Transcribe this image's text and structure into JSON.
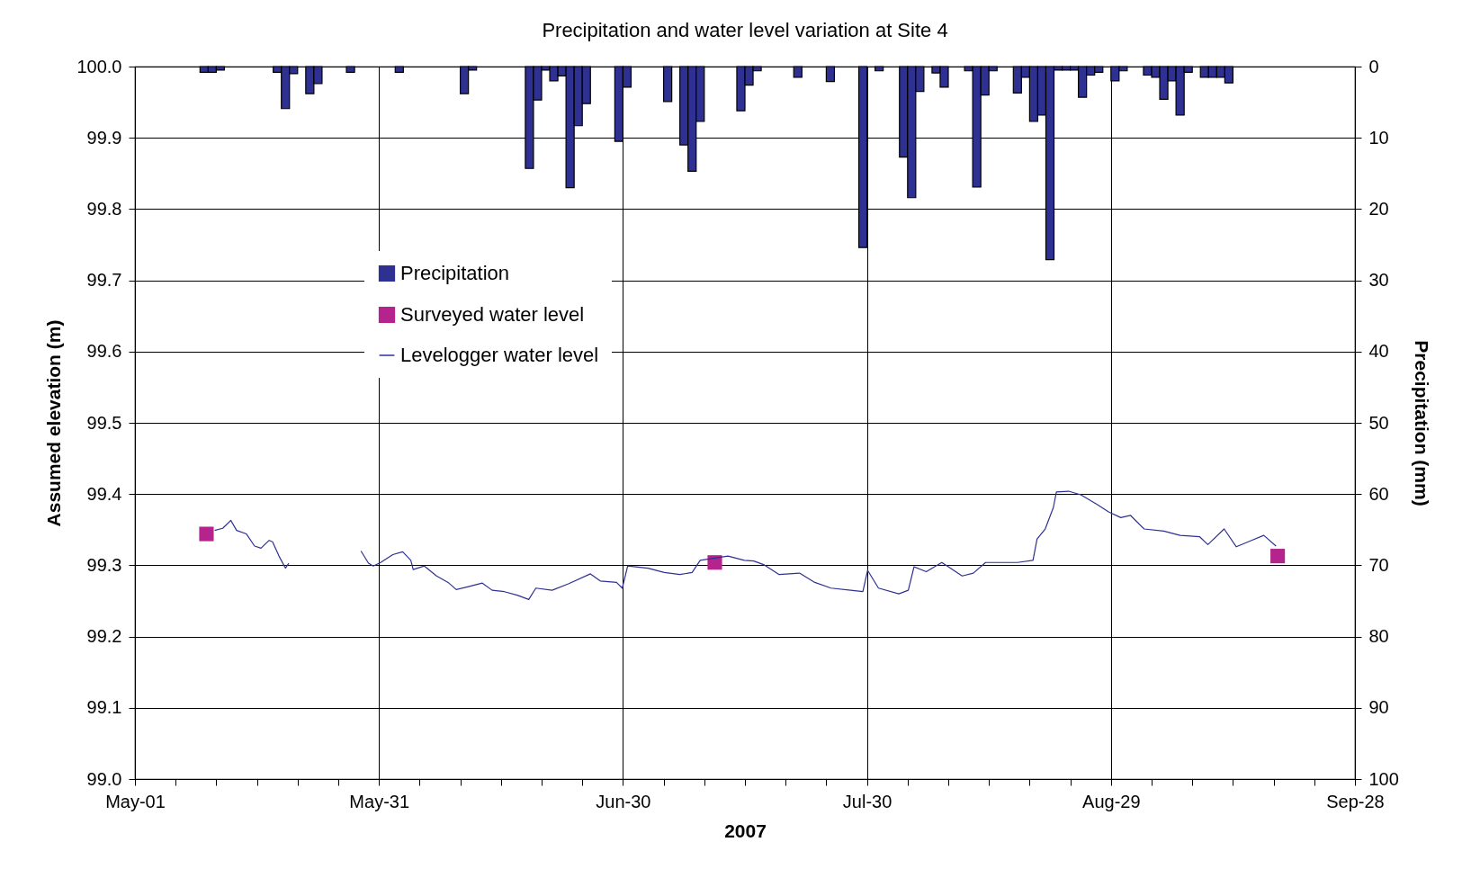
{
  "chart_data": {
    "type": "line",
    "title": "Precipitation and water level variation at Site 4",
    "xlabel": "2007",
    "ylabel": "Assumed elevation (m)",
    "y2label": "Precipitation (mm)",
    "xlim": [
      "2007-05-01",
      "2007-09-28"
    ],
    "xticks": [
      {
        "value": "2007-05-01",
        "label": "May-01"
      },
      {
        "value": "2007-05-06",
        "label": null
      },
      {
        "value": "2007-05-11",
        "label": null
      },
      {
        "value": "2007-05-16",
        "label": null
      },
      {
        "value": "2007-05-21",
        "label": null
      },
      {
        "value": "2007-05-26",
        "label": null
      },
      {
        "value": "2007-05-31",
        "label": "May-31"
      },
      {
        "value": "2007-06-05",
        "label": null
      },
      {
        "value": "2007-06-10",
        "label": null
      },
      {
        "value": "2007-06-15",
        "label": null
      },
      {
        "value": "2007-06-20",
        "label": null
      },
      {
        "value": "2007-06-25",
        "label": null
      },
      {
        "value": "2007-06-30",
        "label": "Jun-30"
      },
      {
        "value": "2007-07-05",
        "label": null
      },
      {
        "value": "2007-07-10",
        "label": null
      },
      {
        "value": "2007-07-15",
        "label": null
      },
      {
        "value": "2007-07-20",
        "label": null
      },
      {
        "value": "2007-07-25",
        "label": null
      },
      {
        "value": "2007-07-30",
        "label": "Jul-30"
      },
      {
        "value": "2007-08-04",
        "label": null
      },
      {
        "value": "2007-08-09",
        "label": null
      },
      {
        "value": "2007-08-14",
        "label": null
      },
      {
        "value": "2007-08-19",
        "label": null
      },
      {
        "value": "2007-08-24",
        "label": null
      },
      {
        "value": "2007-08-29",
        "label": "Aug-29"
      },
      {
        "value": "2007-09-03",
        "label": null
      },
      {
        "value": "2007-09-08",
        "label": null
      },
      {
        "value": "2007-09-13",
        "label": null
      },
      {
        "value": "2007-09-18",
        "label": null
      },
      {
        "value": "2007-09-23",
        "label": null
      },
      {
        "value": "2007-09-28",
        "label": "Sep-28"
      }
    ],
    "ylim": [
      99.0,
      100.0
    ],
    "yticks": [
      {
        "value": 99,
        "label": "99.0"
      },
      99.1,
      99.2,
      99.3,
      99.4,
      99.5,
      99.6,
      99.7,
      99.8,
      99.9,
      {
        "value": 100,
        "label": "100.0"
      }
    ],
    "y2lim": [
      100,
      0
    ],
    "y2ticks": [
      0,
      10,
      20,
      30,
      40,
      50,
      60,
      70,
      80,
      90,
      100
    ],
    "grid": true,
    "legend": "top left",
    "series": [
      {
        "name": "Precipitation",
        "type": "bar",
        "axis": "y2",
        "color": "#2e3192",
        "x": [
          "2007-05-09",
          "2007-05-10",
          "2007-05-11",
          "2007-05-18",
          "2007-05-19",
          "2007-05-20",
          "2007-05-22",
          "2007-05-23",
          "2007-05-27",
          "2007-06-02",
          "2007-06-10",
          "2007-06-11",
          "2007-06-18",
          "2007-06-19",
          "2007-06-20",
          "2007-06-21",
          "2007-06-22",
          "2007-06-23",
          "2007-06-24",
          "2007-06-25",
          "2007-06-29",
          "2007-06-30",
          "2007-07-05",
          "2007-07-07",
          "2007-07-08",
          "2007-07-09",
          "2007-07-14",
          "2007-07-15",
          "2007-07-16",
          "2007-07-21",
          "2007-07-25",
          "2007-07-29",
          "2007-07-31",
          "2007-08-03",
          "2007-08-04",
          "2007-08-05",
          "2007-08-07",
          "2007-08-08",
          "2007-08-11",
          "2007-08-12",
          "2007-08-13",
          "2007-08-14",
          "2007-08-17",
          "2007-08-18",
          "2007-08-19",
          "2007-08-20",
          "2007-08-21",
          "2007-08-22",
          "2007-08-23",
          "2007-08-24",
          "2007-08-25",
          "2007-08-26",
          "2007-08-27",
          "2007-08-29",
          "2007-08-30",
          "2007-09-02",
          "2007-09-03",
          "2007-09-04",
          "2007-09-05",
          "2007-09-06",
          "2007-09-07",
          "2007-09-09",
          "2007-09-10",
          "2007-09-11",
          "2007-09-12"
        ],
        "values": [
          0.8,
          0.8,
          0.5,
          0.8,
          5.9,
          1.0,
          3.8,
          2.4,
          0.8,
          0.8,
          3.8,
          0.5,
          14.3,
          4.7,
          0.5,
          2.0,
          1.3,
          17.0,
          8.3,
          5.2,
          10.5,
          2.9,
          4.9,
          11.0,
          14.7,
          7.7,
          6.2,
          2.6,
          0.6,
          1.5,
          2.1,
          25.4,
          0.6,
          12.7,
          18.4,
          3.5,
          0.9,
          2.9,
          0.6,
          16.9,
          4.0,
          0.6,
          3.7,
          1.5,
          7.7,
          6.8,
          27.1,
          0.5,
          0.5,
          0.5,
          4.3,
          1.2,
          0.8,
          2.0,
          0.6,
          1.2,
          1.5,
          4.6,
          2.0,
          6.8,
          0.8,
          1.5,
          1.5,
          1.5,
          2.3
        ]
      },
      {
        "name": "Surveyed water level",
        "type": "scatter",
        "marker": "square",
        "color": "#b5238c",
        "x": [
          "2007-05-09T19:00",
          "2007-07-11T07:00",
          "2007-09-18T12:00"
        ],
        "values": [
          99.344,
          99.304,
          99.313
        ]
      },
      {
        "name": "Levelogger water level",
        "line_style": "solid",
        "color": "#2e3192",
        "x": [
          "2007-05-10T19:00",
          "2007-05-11T19:00",
          "2007-05-12T19:00",
          "2007-05-13T12:00",
          "2007-05-14T17:00",
          "2007-05-15T17:00",
          "2007-05-16T12:00",
          "2007-05-17T12:00",
          "2007-05-17T22:00",
          "2007-05-18T17:00",
          "2007-05-19T12:00",
          "2007-05-19T22:00",
          "2007-05-24T00:00",
          "2007-05-28T19:00",
          "2007-05-29T17:00",
          "2007-05-30T07:00",
          "2007-05-31T05:00",
          "2007-06-01T17:00",
          "2007-06-02T22:00",
          "2007-06-03T22:00",
          "2007-06-04T05:00",
          "2007-06-05T14:00",
          "2007-06-07T02:00",
          "2007-06-08T12:00",
          "2007-06-09T12:00",
          "2007-06-11T00:00",
          "2007-06-12T17:00",
          "2007-06-13T22:00",
          "2007-06-15T10:00",
          "2007-06-17T00:00",
          "2007-06-18T10:00",
          "2007-06-19T07:00",
          "2007-06-21T07:00",
          "2007-06-23T07:00",
          "2007-06-26T00:00",
          "2007-06-27T05:00",
          "2007-06-29T05:00",
          "2007-06-29T22:00",
          "2007-06-30T14:00",
          "2007-07-03T02:00",
          "2007-07-05T02:00",
          "2007-07-07T00:00",
          "2007-07-08T12:00",
          "2007-07-09T12:00",
          "2007-07-12T22:00",
          "2007-07-14T22:00",
          "2007-07-16T02:00",
          "2007-07-17T07:00",
          "2007-07-19T05:00",
          "2007-07-21T17:00",
          "2007-07-23T14:00",
          "2007-07-25T14:00",
          "2007-07-28T00:00",
          "2007-07-29T12:00",
          "2007-07-30T02:00",
          "2007-07-31T10:00",
          "2007-08-02T22:00",
          "2007-08-04T02:00",
          "2007-08-04T19:00",
          "2007-08-06T07:00",
          "2007-08-08T05:00",
          "2007-08-10T17:00",
          "2007-08-12T02:00",
          "2007-08-13T14:00",
          "2007-08-15T00:00",
          "2007-08-17T12:00",
          "2007-08-19T10:00",
          "2007-08-19T22:00",
          "2007-08-20T22:00",
          "2007-08-21T22:00",
          "2007-08-22T07:00",
          "2007-08-23T19:00",
          "2007-08-25T07:00",
          "2007-08-27T05:00",
          "2007-08-28T17:00",
          "2007-08-30T05:00",
          "2007-08-31T10:00",
          "2007-09-02T02:00",
          "2007-09-04T12:00",
          "2007-09-06T12:00",
          "2007-09-08T22:00",
          "2007-09-09T22:00",
          "2007-09-11T22:00",
          "2007-09-13T10:00",
          "2007-09-15T02:00",
          "2007-09-16T19:00",
          "2007-09-18T07:00"
        ],
        "values": [
          99.349,
          99.352,
          99.363,
          99.349,
          99.344,
          99.327,
          99.324,
          99.335,
          99.333,
          99.313,
          99.296,
          99.303,
          null,
          99.32,
          99.303,
          99.299,
          99.304,
          99.315,
          99.319,
          99.307,
          99.294,
          99.299,
          99.285,
          99.276,
          99.266,
          99.27,
          99.275,
          99.265,
          99.263,
          99.258,
          99.252,
          99.268,
          99.265,
          99.274,
          99.288,
          99.278,
          99.276,
          99.268,
          99.299,
          99.296,
          99.29,
          99.287,
          99.29,
          99.307,
          99.313,
          99.307,
          99.306,
          99.301,
          99.287,
          99.289,
          99.276,
          99.268,
          99.265,
          99.263,
          99.293,
          99.268,
          99.26,
          99.265,
          99.298,
          99.291,
          99.304,
          99.285,
          99.289,
          99.304,
          99.304,
          99.304,
          99.307,
          99.337,
          99.351,
          99.381,
          99.403,
          99.404,
          99.399,
          99.386,
          99.375,
          99.367,
          99.37,
          99.351,
          99.348,
          99.342,
          99.34,
          99.329,
          99.351,
          99.326,
          99.334,
          99.342,
          99.327
        ]
      }
    ]
  }
}
